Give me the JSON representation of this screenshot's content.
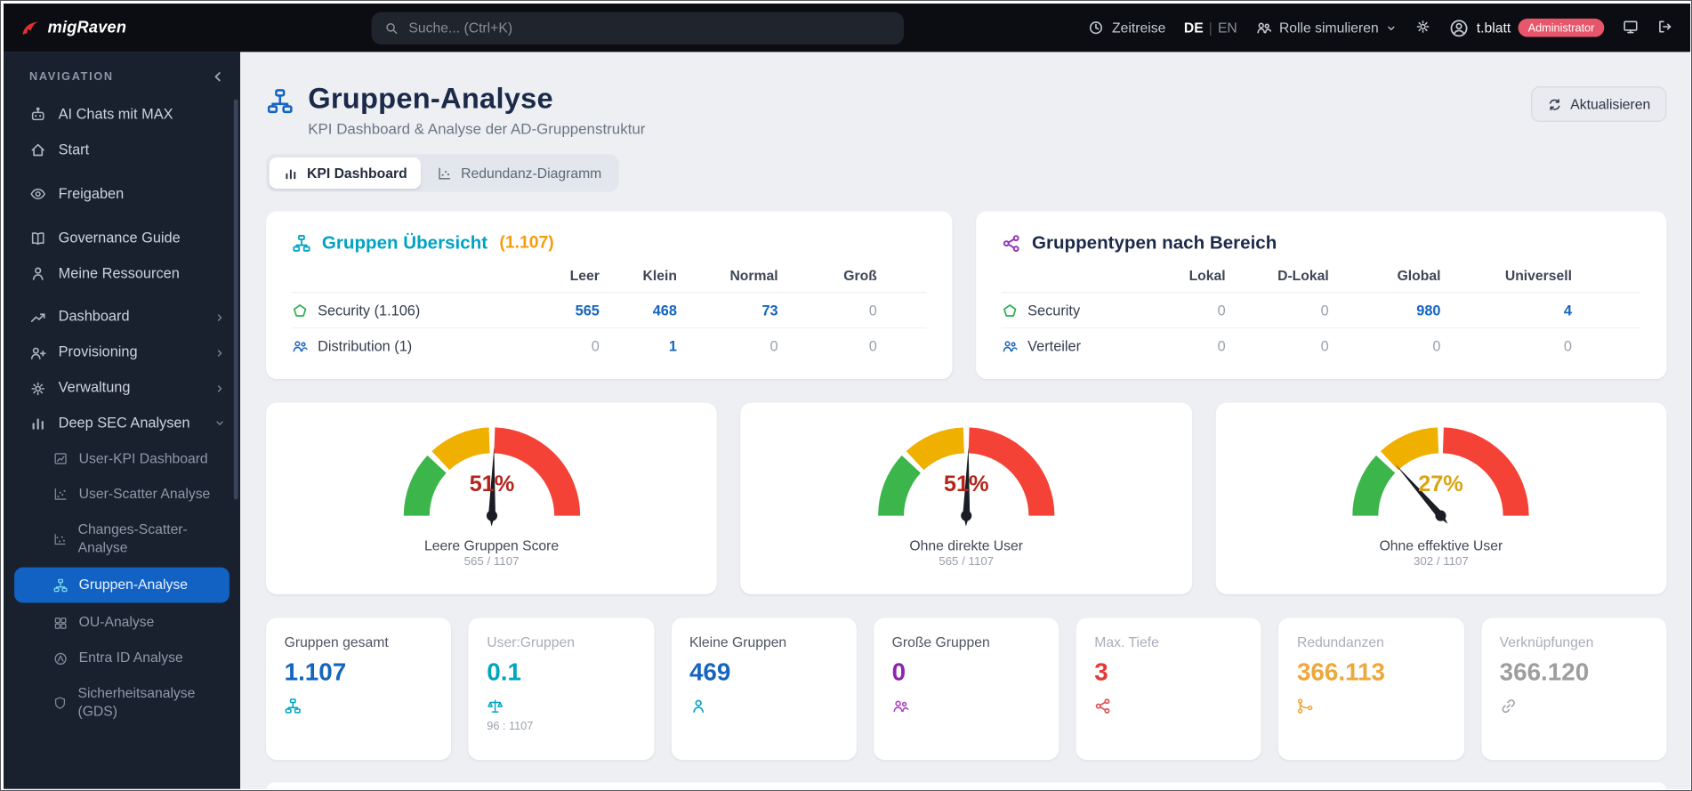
{
  "colors": {
    "accent_blue": "#1565c0",
    "teal": "#00a6c0",
    "orange": "#f59e0b",
    "badge_red": "#e8566b",
    "gauge_green": "#3cb54a",
    "gauge_yellow": "#f0b000",
    "gauge_red": "#f44336"
  },
  "topbar": {
    "logo": "migRaven",
    "search_placeholder": "Suche... (Ctrl+K)",
    "zeitreise": "Zeitreise",
    "lang_de": "DE",
    "lang_en": "EN",
    "role_simulieren": "Rolle simulieren",
    "username": "t.blatt",
    "user_badge": "Administrator"
  },
  "sidebar": {
    "header": "NAVIGATION",
    "items": [
      {
        "label": "AI Chats mit MAX"
      },
      {
        "label": "Start"
      },
      {
        "label": "Freigaben"
      },
      {
        "label": "Governance Guide"
      },
      {
        "label": "Meine Ressourcen"
      },
      {
        "label": "Dashboard"
      },
      {
        "label": "Provisioning"
      },
      {
        "label": "Verwaltung"
      },
      {
        "label": "Deep SEC Analysen"
      }
    ],
    "subitems": [
      {
        "label": "User-KPI Dashboard"
      },
      {
        "label": "User-Scatter Analyse"
      },
      {
        "label": "Changes-Scatter-Analyse"
      },
      {
        "label": "Gruppen-Analyse",
        "active": true
      },
      {
        "label": "OU-Analyse"
      },
      {
        "label": "Entra ID Analyse"
      },
      {
        "label": "Sicherheitsanalyse (GDS)"
      }
    ]
  },
  "page": {
    "title": "Gruppen-Analyse",
    "subtitle": "KPI Dashboard & Analyse der AD-Gruppenstruktur",
    "refresh": "Aktualisieren",
    "tab_kpi": "KPI Dashboard",
    "tab_redundanz": "Redundanz-Diagramm"
  },
  "overview_card": {
    "title": "Gruppen Übersicht",
    "count": "(1.107)",
    "columns": [
      "Leer",
      "Klein",
      "Normal",
      "Groß"
    ],
    "rows": [
      {
        "label": "Security (1.106)",
        "values": [
          "565",
          "468",
          "73",
          "0"
        ]
      },
      {
        "label": "Distribution (1)",
        "values": [
          "0",
          "1",
          "0",
          "0"
        ]
      }
    ]
  },
  "types_card": {
    "title": "Gruppentypen nach Bereich",
    "columns": [
      "Lokal",
      "D-Lokal",
      "Global",
      "Universell"
    ],
    "rows": [
      {
        "label": "Security",
        "values": [
          "0",
          "0",
          "980",
          "4"
        ]
      },
      {
        "label": "Verteiler",
        "values": [
          "0",
          "0",
          "0",
          "0"
        ]
      }
    ]
  },
  "gauges": [
    {
      "percent": 51,
      "display": "51%",
      "label": "Leere Gruppen Score",
      "detail": "565 / 1107",
      "value_color": "#b3261e"
    },
    {
      "percent": 51,
      "display": "51%",
      "label": "Ohne direkte User",
      "detail": "565 / 1107",
      "value_color": "#b3261e"
    },
    {
      "percent": 27,
      "display": "27%",
      "label": "Ohne effektive User",
      "detail": "302 / 1107",
      "value_color": "#d9a513"
    }
  ],
  "kpis": [
    {
      "label": "Gruppen gesamt",
      "value": "1.107",
      "color": "#1565c0",
      "icon_color": "#00a6c0"
    },
    {
      "label": "User:Gruppen",
      "value": "0.1",
      "color": "#00a6c0",
      "icon_color": "#00a6c0",
      "sub": "96 : 1107"
    },
    {
      "label": "Kleine Gruppen",
      "value": "469",
      "color": "#1565c0",
      "icon_color": "#00a6c0"
    },
    {
      "label": "Große Gruppen",
      "value": "0",
      "color": "#8e24aa",
      "icon_color": "#b03fc4"
    },
    {
      "label": "Max. Tiefe",
      "value": "3",
      "color": "#e53935",
      "icon_color": "#e05252"
    },
    {
      "label": "Redundanzen",
      "value": "366.113",
      "color": "#eda73b",
      "icon_color": "#eda73b"
    },
    {
      "label": "Verknüpfungen",
      "value": "366.120",
      "color": "#9e9e9e",
      "icon_color": "#9aa1ab"
    }
  ]
}
